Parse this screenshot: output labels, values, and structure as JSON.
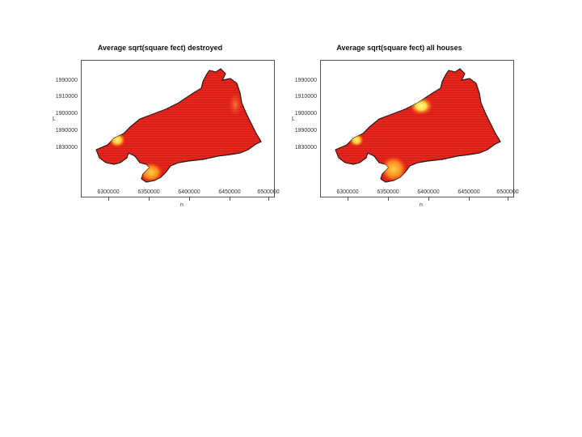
{
  "panels": [
    {
      "title": "Average sqrt(square fect) destroyed",
      "ytick_labels": [
        "1990000",
        "1910000",
        "1900000",
        "1890000",
        "1830000"
      ],
      "xtick_labels": [
        "6300000",
        "6350000",
        "6400000",
        "6450000",
        "6500000"
      ],
      "xlabel": "n",
      "ylabel": "L",
      "hotspots": [
        "bright-yellow-west",
        "orange-south-bay",
        "faint-east"
      ]
    },
    {
      "title": "Average sqrt(square fect) all houses",
      "ytick_labels": [
        "1990000",
        "1910000",
        "1900000",
        "1890000",
        "1830000"
      ],
      "xtick_labels": [
        "6300000",
        "6350000",
        "6400000",
        "6450000",
        "6500000"
      ],
      "xlabel": "n",
      "ylabel": "L",
      "hotspots": [
        "bright-yellow-north-center",
        "bright-yellow-west",
        "orange-south-bay"
      ]
    }
  ],
  "colors": {
    "fill": "#e8251c",
    "hot": "#fff23a",
    "warm": "#ffb020",
    "outline": "#2a1a1a",
    "grid": "#b51d15"
  }
}
